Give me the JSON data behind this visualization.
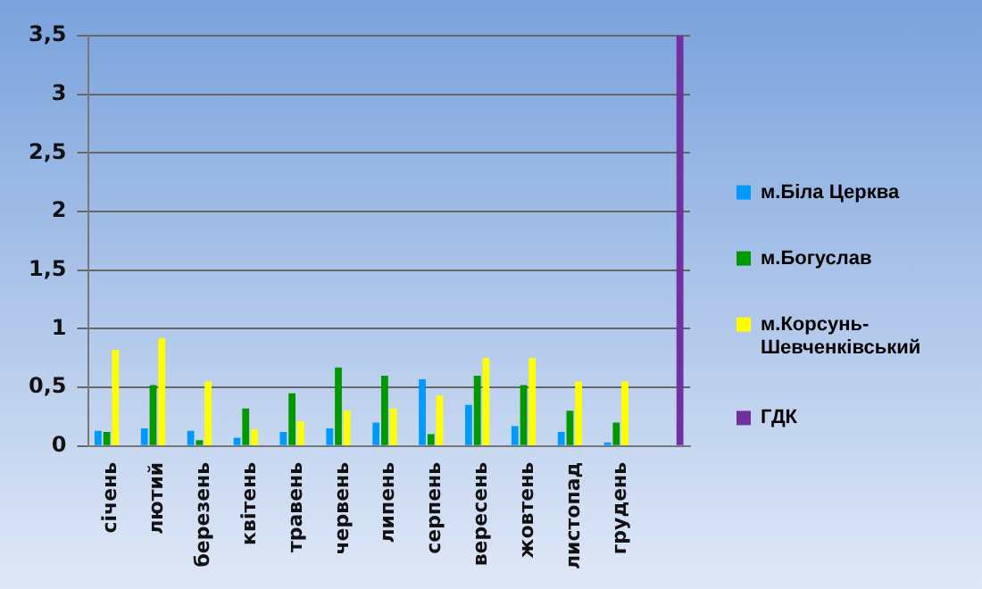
{
  "chart_data": {
    "type": "bar",
    "categories": [
      "січень",
      "лютий",
      "березень",
      "квітень",
      "травень",
      "червень",
      "липень",
      "серпень",
      "вересень",
      "жовтень",
      "листопад",
      "грудень",
      null
    ],
    "series": [
      {
        "name": "м.Біла Церква",
        "color": "#0099ff",
        "values": [
          0.13,
          0.15,
          0.13,
          0.07,
          0.12,
          0.15,
          0.2,
          0.57,
          0.35,
          0.17,
          0.12,
          0.03,
          null
        ]
      },
      {
        "name": "м.Богуслав",
        "color": "#009900",
        "values": [
          0.12,
          0.52,
          0.05,
          0.32,
          0.45,
          0.67,
          0.6,
          0.1,
          0.6,
          0.52,
          0.3,
          0.2,
          null
        ]
      },
      {
        "name": "м.Корсунь-Шевченківський",
        "color": "#ffff00",
        "values": [
          0.82,
          0.92,
          0.55,
          0.14,
          0.21,
          0.3,
          0.32,
          0.43,
          0.75,
          0.75,
          0.55,
          0.55,
          null
        ]
      },
      {
        "name": "ГДК",
        "color": "#7030a0",
        "values": [
          null,
          null,
          null,
          null,
          null,
          null,
          null,
          null,
          null,
          null,
          null,
          null,
          3.5
        ]
      }
    ],
    "ylim": [
      0,
      3.5
    ],
    "yticks": [
      0,
      {
        "value": 0.5,
        "label": "0,5"
      },
      1,
      {
        "value": 1.5,
        "label": "1,5"
      },
      2,
      {
        "value": 2.5,
        "label": "2,5"
      },
      3,
      {
        "value": 3.5,
        "label": "3,5"
      }
    ],
    "grid": "y",
    "legend": "right"
  }
}
